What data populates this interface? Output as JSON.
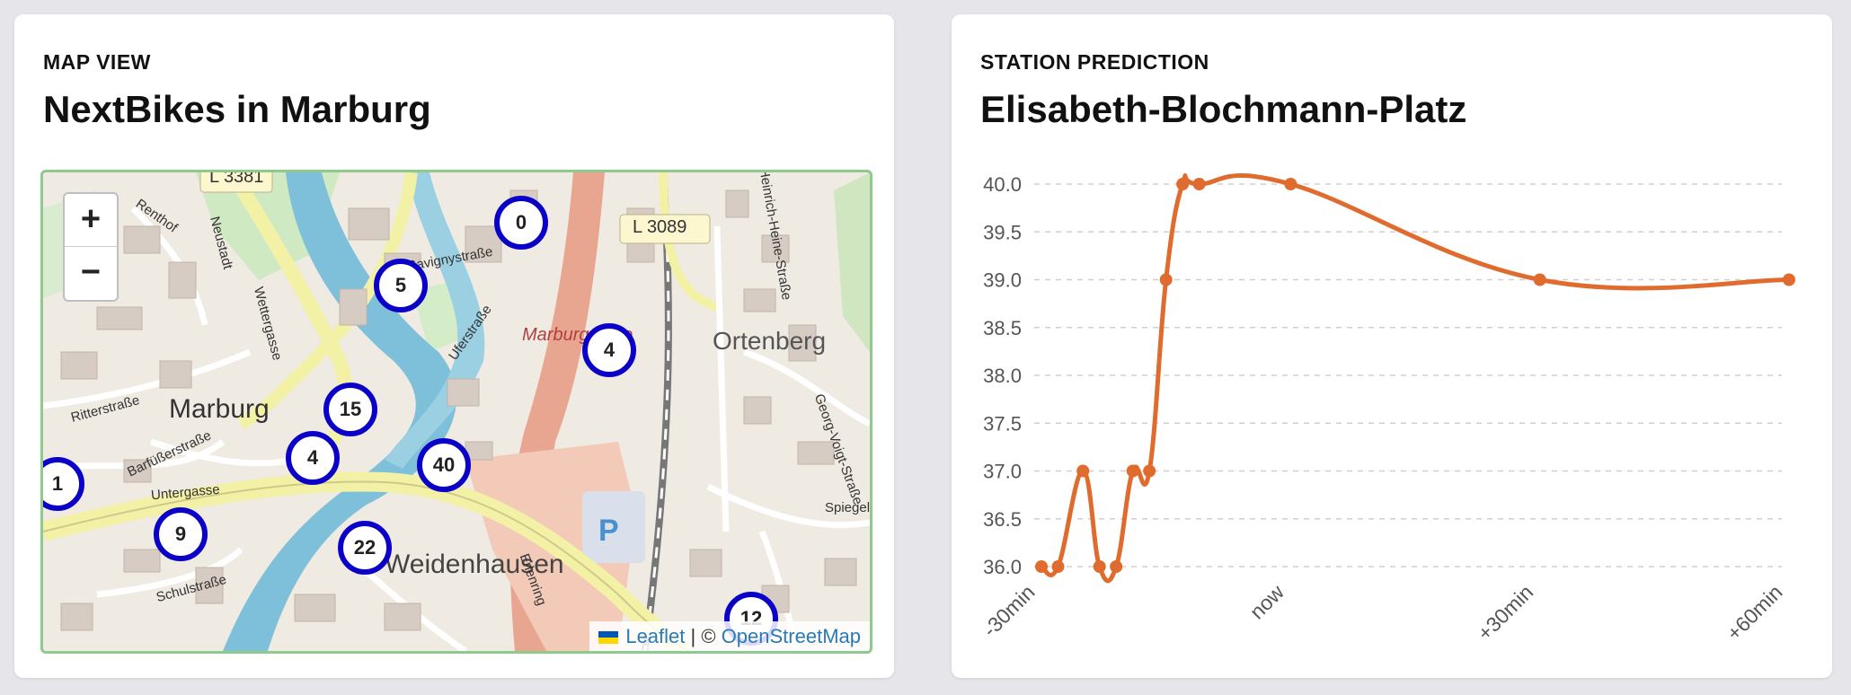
{
  "map_card": {
    "eyebrow": "MAP VIEW",
    "title": "NextBikes in Marburg",
    "zoom_in": "+",
    "zoom_out": "−",
    "attribution": {
      "leaflet": "Leaflet",
      "separator": "| ©",
      "osm": "OpenStreetMap"
    },
    "labels": {
      "city": "Marburg",
      "district1": "Ortenberg",
      "district2": "Weidenhausen",
      "road1": "L 3089",
      "road2": "L 3381",
      "station": "Marburg Mitte",
      "parking": "P",
      "streets": [
        "Renthof",
        "Neustadt",
        "Wettergasse",
        "Savignystraße",
        "Uferstraße",
        "Ritterstraße",
        "Barfüßerstraße",
        "Untergasse",
        "Schulstraße",
        "Heinrich-Heine-Straße",
        "Georg-Voigt-Straße",
        "Erlenring",
        "Spiegel"
      ]
    },
    "markers": [
      "0",
      "5",
      "4",
      "15",
      "4",
      "40",
      "1",
      "9",
      "22",
      "12"
    ],
    "colors": {
      "marker_ring": "#0a00c8",
      "border": "#8fc98b"
    }
  },
  "prediction_card": {
    "eyebrow": "STATION PREDICTION",
    "title": "Elisabeth-Blochmann-Platz"
  },
  "chart_data": {
    "type": "line",
    "x_ticks": [
      "-30min",
      "now",
      "+30min",
      "+60min"
    ],
    "y_ticks": [
      "36.0",
      "36.5",
      "37.0",
      "37.5",
      "38.0",
      "38.5",
      "39.0",
      "39.5",
      "40.0"
    ],
    "ylim": [
      36,
      40
    ],
    "xlim": [
      -30,
      60
    ],
    "x": [
      -30,
      -28,
      -25,
      -23,
      -21,
      -19,
      -17,
      -15,
      -13,
      -11,
      0,
      30,
      60
    ],
    "values": [
      36,
      36,
      37,
      36,
      36,
      37,
      37,
      39,
      40,
      40,
      40,
      39,
      39
    ],
    "color": "#e06b2e",
    "grid": "dashed horizontal"
  }
}
